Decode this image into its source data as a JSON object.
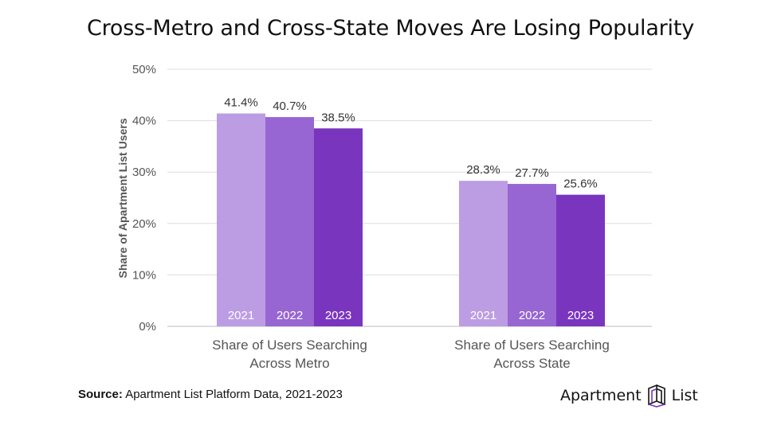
{
  "chart_data": {
    "type": "bar",
    "title": "Cross-Metro and Cross-State Moves Are Losing Popularity",
    "ylabel": "Share of Apartment List Users",
    "xlabel": "",
    "ylim": [
      0,
      50
    ],
    "yticks": [
      "0%",
      "10%",
      "20%",
      "30%",
      "40%",
      "50%"
    ],
    "categories": [
      "Share of Users Searching\nAcross Metro",
      "Share of Users Searching\nAcross State"
    ],
    "series": [
      {
        "name": "2021",
        "values": [
          41.4,
          28.3
        ],
        "labels": [
          "41.4%",
          "28.3%"
        ],
        "color": "#bc9de3"
      },
      {
        "name": "2022",
        "values": [
          40.7,
          27.7
        ],
        "labels": [
          "40.7%",
          "27.7%"
        ],
        "color": "#9766d3"
      },
      {
        "name": "2023",
        "values": [
          38.5,
          25.6
        ],
        "labels": [
          "38.5%",
          "25.6%"
        ],
        "color": "#7a35bf"
      }
    ],
    "grid": true,
    "legend": "in-bar"
  },
  "footer": {
    "source_bold": "Source:",
    "source_text": " Apartment List Platform Data, 2021-2023"
  },
  "logo": {
    "word1": "Apartment",
    "word2": "List",
    "icon": "apartment-list-logo-icon"
  }
}
